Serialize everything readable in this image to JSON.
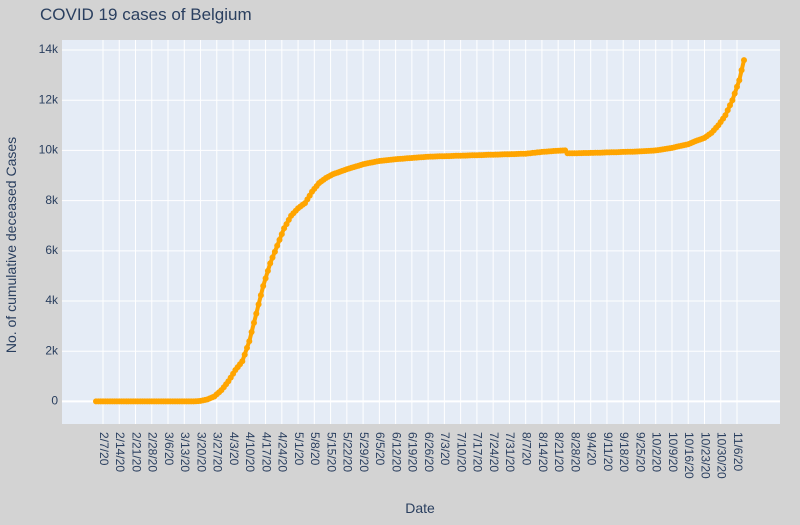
{
  "chart_data": {
    "type": "line",
    "title": "COVID 19 cases of Belgium",
    "xlabel": "Date",
    "ylabel": "No. of cumulative deceased Cases",
    "ylim": [
      -900,
      14400
    ],
    "yticks": [
      0,
      2000,
      4000,
      6000,
      8000,
      10000,
      12000,
      14000
    ],
    "ytick_labels": [
      "0",
      "2k",
      "4k",
      "6k",
      "8k",
      "10k",
      "12k",
      "14k"
    ],
    "xtick_labels": [
      "2/7/20",
      "2/14/20",
      "2/21/20",
      "2/28/20",
      "3/6/20",
      "3/13/20",
      "3/20/20",
      "3/27/20",
      "4/3/20",
      "4/10/20",
      "4/17/20",
      "4/24/20",
      "5/1/20",
      "5/8/20",
      "5/15/20",
      "5/22/20",
      "5/29/20",
      "6/5/20",
      "6/12/20",
      "6/19/20",
      "6/26/20",
      "7/3/20",
      "7/10/20",
      "7/17/20",
      "7/24/20",
      "7/31/20",
      "8/7/20",
      "8/14/20",
      "8/21/20",
      "8/28/20",
      "9/4/20",
      "9/11/20",
      "9/18/20",
      "9/25/20",
      "10/2/20",
      "10/9/20",
      "10/16/20",
      "10/23/20",
      "10/30/20",
      "11/6/20"
    ],
    "grid": true,
    "series": [
      {
        "color": "#ffa500",
        "mode": "lines+markers",
        "x": [
          "2/4/20",
          "2/11/20",
          "2/18/20",
          "2/25/20",
          "3/3/20",
          "3/10/20",
          "3/14/20",
          "3/17/20",
          "3/20/20",
          "3/23/20",
          "3/26/20",
          "3/29/20",
          "4/1/20",
          "4/4/20",
          "4/7/20",
          "4/10/20",
          "4/13/20",
          "4/16/20",
          "4/19/20",
          "4/22/20",
          "4/25/20",
          "4/28/20",
          "5/1/20",
          "5/4/20",
          "5/7/20",
          "5/10/20",
          "5/13/20",
          "5/16/20",
          "5/22/20",
          "5/29/20",
          "6/5/20",
          "6/12/20",
          "6/19/20",
          "6/26/20",
          "7/3/20",
          "7/10/20",
          "7/17/20",
          "7/24/20",
          "7/31/20",
          "8/7/20",
          "8/14/20",
          "8/21/20",
          "8/24/20",
          "8/25/20",
          "8/28/20",
          "9/4/20",
          "9/11/20",
          "9/18/20",
          "9/25/20",
          "10/2/20",
          "10/9/20",
          "10/16/20",
          "10/20/20",
          "10/23/20",
          "10/26/20",
          "10/29/20",
          "11/1/20",
          "11/4/20",
          "11/7/20",
          "11/9/20"
        ],
        "y": [
          0,
          0,
          0,
          0,
          0,
          0,
          0,
          0,
          20,
          80,
          200,
          450,
          800,
          1250,
          1600,
          2400,
          3500,
          4600,
          5500,
          6200,
          6900,
          7400,
          7700,
          7900,
          8350,
          8700,
          8900,
          9050,
          9250,
          9450,
          9580,
          9650,
          9700,
          9750,
          9770,
          9790,
          9810,
          9830,
          9850,
          9870,
          9940,
          9990,
          10000,
          9890,
          9890,
          9900,
          9920,
          9940,
          9960,
          10000,
          10100,
          10250,
          10400,
          10500,
          10700,
          11000,
          11400,
          12000,
          12800,
          13600
        ]
      }
    ]
  }
}
